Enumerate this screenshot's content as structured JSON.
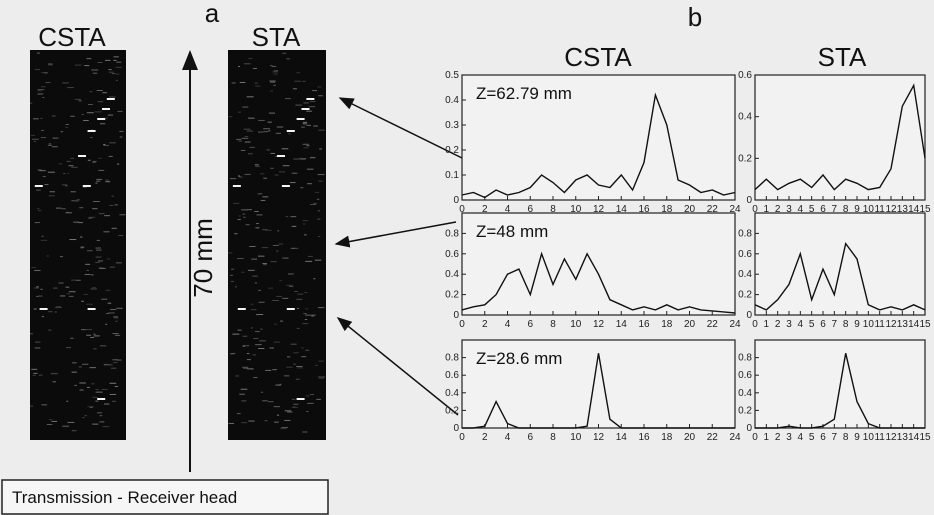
{
  "panel_a": {
    "label": "a",
    "image_titles": [
      "CSTA",
      "STA"
    ],
    "scale_label": "70 mm",
    "footer": "Transmission - Receiver head"
  },
  "panel_b": {
    "label": "b",
    "column_titles": [
      "CSTA",
      "STA"
    ]
  },
  "chart_data": [
    {
      "type": "line",
      "annotation": "Z=62.79 mm",
      "color": "#111111",
      "x": [
        0,
        1,
        2,
        3,
        4,
        5,
        6,
        7,
        8,
        9,
        10,
        11,
        12,
        13,
        14,
        15,
        16,
        17,
        18,
        19,
        20,
        21,
        22,
        23,
        24
      ],
      "values": [
        0.02,
        0.03,
        0.01,
        0.04,
        0.02,
        0.03,
        0.05,
        0.1,
        0.07,
        0.03,
        0.08,
        0.1,
        0.06,
        0.05,
        0.1,
        0.04,
        0.15,
        0.42,
        0.3,
        0.08,
        0.06,
        0.03,
        0.04,
        0.02,
        0.03
      ],
      "xlim": [
        0,
        24
      ],
      "xticks": [
        0,
        2,
        4,
        6,
        8,
        10,
        12,
        14,
        16,
        18,
        20,
        22,
        24
      ],
      "ylim": [
        0,
        0.5
      ],
      "yticks": [
        0,
        0.1,
        0.2,
        0.3,
        0.4,
        0.5
      ]
    },
    {
      "type": "line",
      "annotation": "Z=48 mm",
      "color": "#111111",
      "x": [
        0,
        1,
        2,
        3,
        4,
        5,
        6,
        7,
        8,
        9,
        10,
        11,
        12,
        13,
        14,
        15,
        16,
        17,
        18,
        19,
        20,
        21,
        22,
        23,
        24
      ],
      "values": [
        0.05,
        0.08,
        0.1,
        0.2,
        0.4,
        0.45,
        0.2,
        0.6,
        0.3,
        0.55,
        0.35,
        0.6,
        0.4,
        0.15,
        0.1,
        0.05,
        0.08,
        0.05,
        0.1,
        0.05,
        0.08,
        0.05,
        0.04,
        0.03,
        0.02
      ],
      "xlim": [
        0,
        24
      ],
      "xticks": [
        0,
        2,
        4,
        6,
        8,
        10,
        12,
        14,
        16,
        18,
        20,
        22,
        24
      ],
      "ylim": [
        0,
        1
      ],
      "yticks": [
        0,
        0.2,
        0.4,
        0.6,
        0.8
      ]
    },
    {
      "type": "line",
      "annotation": "Z=28.6 mm",
      "color": "#111111",
      "x": [
        0,
        1,
        2,
        3,
        4,
        5,
        6,
        7,
        8,
        9,
        10,
        11,
        12,
        13,
        14,
        15,
        16,
        17,
        18,
        19,
        20,
        21,
        22,
        23,
        24
      ],
      "values": [
        0,
        0,
        0.02,
        0.3,
        0.05,
        0,
        0,
        0,
        0,
        0,
        0,
        0.02,
        0.85,
        0.1,
        0,
        0,
        0,
        0,
        0,
        0,
        0,
        0,
        0,
        0,
        0
      ],
      "xlim": [
        0,
        24
      ],
      "xticks": [
        0,
        2,
        4,
        6,
        8,
        10,
        12,
        14,
        16,
        18,
        20,
        22,
        24
      ],
      "ylim": [
        0,
        1
      ],
      "yticks": [
        0,
        0.2,
        0.4,
        0.6,
        0.8
      ]
    },
    {
      "type": "line",
      "color": "#111111",
      "x": [
        0,
        1,
        2,
        3,
        4,
        5,
        6,
        7,
        8,
        9,
        10,
        11,
        12,
        13,
        14,
        15
      ],
      "values": [
        0.05,
        0.1,
        0.05,
        0.08,
        0.1,
        0.06,
        0.12,
        0.05,
        0.1,
        0.08,
        0.05,
        0.06,
        0.15,
        0.45,
        0.55,
        0.2
      ],
      "xlim": [
        0,
        15
      ],
      "xticks": [
        0,
        1,
        2,
        3,
        4,
        5,
        6,
        7,
        8,
        9,
        10,
        11,
        12,
        13,
        14,
        15
      ],
      "ylim": [
        0,
        0.6
      ],
      "yticks": [
        0,
        0.2,
        0.4,
        0.6
      ]
    },
    {
      "type": "line",
      "color": "#111111",
      "x": [
        0,
        1,
        2,
        3,
        4,
        5,
        6,
        7,
        8,
        9,
        10,
        11,
        12,
        13,
        14,
        15
      ],
      "values": [
        0.1,
        0.05,
        0.15,
        0.3,
        0.6,
        0.15,
        0.45,
        0.2,
        0.7,
        0.55,
        0.1,
        0.05,
        0.08,
        0.05,
        0.1,
        0.05
      ],
      "xlim": [
        0,
        15
      ],
      "xticks": [
        0,
        1,
        2,
        3,
        4,
        5,
        6,
        7,
        8,
        9,
        10,
        11,
        12,
        13,
        14,
        15
      ],
      "ylim": [
        0,
        1
      ],
      "yticks": [
        0,
        0.2,
        0.4,
        0.6,
        0.8
      ]
    },
    {
      "type": "line",
      "color": "#111111",
      "x": [
        0,
        1,
        2,
        3,
        4,
        5,
        6,
        7,
        8,
        9,
        10,
        11,
        12,
        13,
        14,
        15
      ],
      "values": [
        0,
        0,
        0,
        0.02,
        0,
        0,
        0.02,
        0.1,
        0.85,
        0.3,
        0.05,
        0,
        0,
        0,
        0,
        0
      ],
      "xlim": [
        0,
        15
      ],
      "xticks": [
        0,
        1,
        2,
        3,
        4,
        5,
        6,
        7,
        8,
        9,
        10,
        11,
        12,
        13,
        14,
        15
      ],
      "ylim": [
        0,
        1
      ],
      "yticks": [
        0,
        0.2,
        0.4,
        0.6,
        0.8
      ]
    }
  ]
}
